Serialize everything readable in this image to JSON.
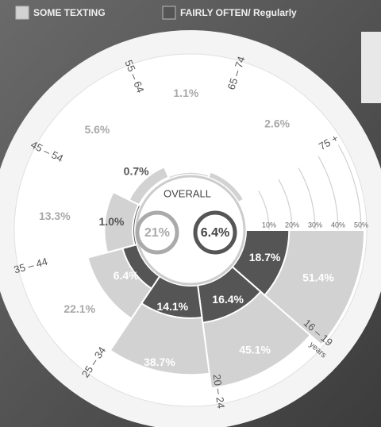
{
  "chart_data": {
    "type": "polar-bar",
    "categories": [
      "16 – 19",
      "20 – 24",
      "25 – 34",
      "35 – 44",
      "45 – 54",
      "55 – 64",
      "65 – 74",
      "75 +"
    ],
    "category_unit": "years",
    "series": [
      {
        "name": "SOME TEXTING",
        "color": "#d2d2d2",
        "values": [
          51.4,
          45.1,
          38.7,
          22.1,
          13.3,
          5.6,
          1.1,
          2.6
        ],
        "value_labels": [
          "51.4%",
          "45.1%",
          "38.7%",
          "22.1%",
          "13.3%",
          "5.6%",
          "1.1%",
          "2.6%"
        ]
      },
      {
        "name": "FAIRLY OFTEN/ Regularly",
        "color": "#555555",
        "values": [
          18.7,
          16.4,
          14.1,
          6.4,
          1.0,
          0.7,
          null,
          null
        ],
        "value_labels": [
          "18.7%",
          "16.4%",
          "14.1%",
          "6.4%",
          "1.0%",
          "0.7%",
          null,
          null
        ]
      }
    ],
    "overall": {
      "title": "OVERALL",
      "values": [
        21,
        6.4
      ],
      "value_labels": [
        "21%",
        "6.4%"
      ]
    },
    "rlim": [
      0,
      50
    ],
    "rticks": [
      {
        "value": 10,
        "label": "10%"
      },
      {
        "value": 20,
        "label": "20%"
      },
      {
        "value": 30,
        "label": "30%"
      },
      {
        "value": 40,
        "label": "40%"
      },
      {
        "value": 50,
        "label": "50%"
      }
    ]
  }
}
